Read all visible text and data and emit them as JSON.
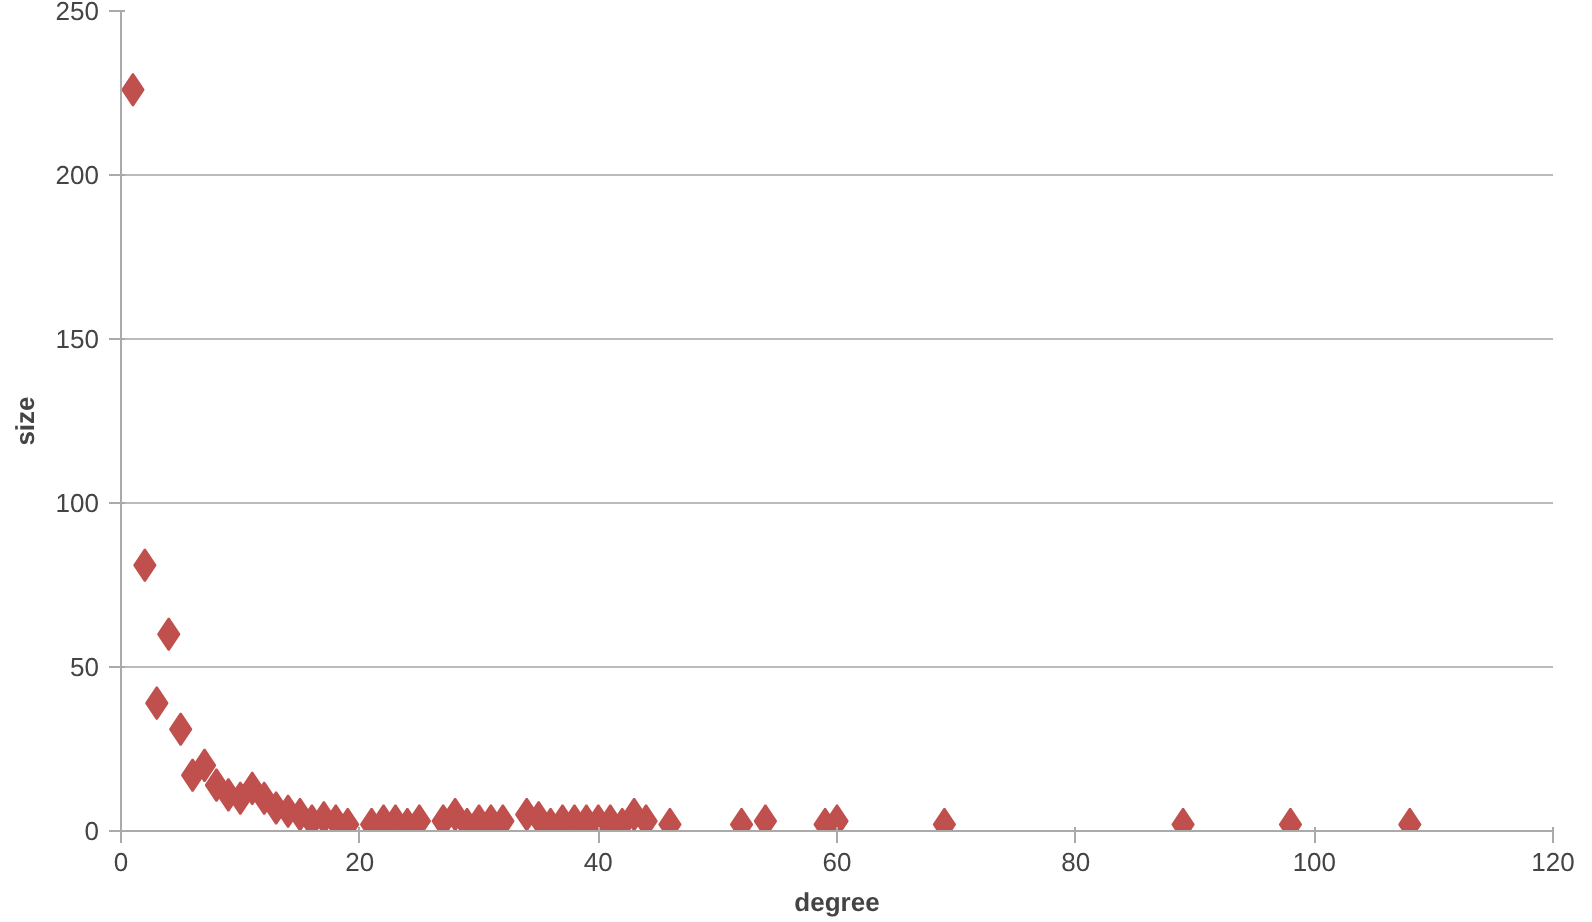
{
  "chart_data": {
    "type": "scatter",
    "xlabel": "degree",
    "ylabel": "size",
    "marker": "diamond",
    "grid": "y",
    "x": [
      1,
      2,
      3,
      4,
      5,
      6,
      7,
      8,
      9,
      10,
      11,
      12,
      13,
      14,
      15,
      16,
      17,
      18,
      19,
      21,
      22,
      23,
      24,
      25,
      27,
      28,
      29,
      30,
      31,
      32,
      34,
      35,
      36,
      37,
      38,
      39,
      40,
      41,
      42,
      43,
      44,
      46,
      52,
      54,
      59,
      60,
      69,
      89,
      98,
      108
    ],
    "series": [
      {
        "color": "#c0504d",
        "values": [
          226,
          81,
          39,
          60,
          31,
          17,
          20,
          14,
          11,
          10,
          13,
          10,
          7,
          6,
          5,
          3,
          4,
          3,
          2,
          2,
          3,
          3,
          2,
          3,
          3,
          5,
          2,
          3,
          3,
          3,
          5,
          4,
          2,
          3,
          3,
          3,
          3,
          3,
          2,
          5,
          3,
          2,
          2,
          3,
          2,
          3,
          2,
          2,
          2,
          2
        ]
      }
    ],
    "xlim": [
      0,
      120
    ],
    "xticks": [
      0,
      20,
      40,
      60,
      80,
      100,
      120
    ],
    "ylim": [
      0,
      250
    ],
    "yticks": [
      0,
      50,
      100,
      150,
      200,
      250
    ]
  }
}
